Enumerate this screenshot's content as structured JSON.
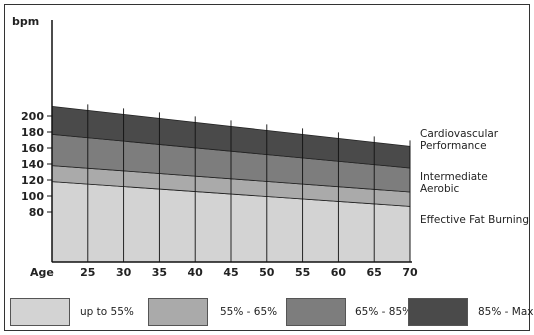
{
  "chart_data": {
    "type": "area",
    "ylabel": "bpm",
    "xlabel": "Age",
    "x": [
      20,
      70
    ],
    "xticks": [
      25,
      30,
      35,
      40,
      45,
      50,
      55,
      60,
      65,
      70
    ],
    "yticks": [
      80,
      100,
      120,
      140,
      160,
      180,
      200
    ],
    "xlim": [
      20,
      70
    ],
    "ylim": [
      70,
      220
    ],
    "grid": "vertical",
    "boundaries": {
      "max_hr": [
        212,
        162
      ],
      "pct_85": [
        177,
        135
      ],
      "pct_65": [
        138,
        105
      ],
      "pct_55": [
        118,
        87
      ]
    },
    "bands": [
      {
        "name": "up to 55%",
        "color": "#d3d3d3",
        "lower": "floor",
        "upper": "pct_55"
      },
      {
        "name": "55% - 65%",
        "color": "#aaaaaa",
        "lower": "pct_55",
        "upper": "pct_65"
      },
      {
        "name": "65% - 85%",
        "color": "#7d7d7d",
        "lower": "pct_65",
        "upper": "pct_85"
      },
      {
        "name": "85% - Max",
        "color": "#4a4a4a",
        "lower": "pct_85",
        "upper": "max_hr"
      }
    ],
    "annotations": [
      {
        "lines": [
          "Cardiovascular",
          "Performance"
        ],
        "band": "65% - 85%"
      },
      {
        "lines": [
          "Intermediate",
          "Aerobic"
        ],
        "band": "55% - 65%"
      },
      {
        "lines": [
          "Effective Fat Burning"
        ],
        "band": "up to 55%"
      }
    ],
    "legend": [
      {
        "label": "up to 55%",
        "color": "#d3d3d3"
      },
      {
        "label": "55% - 65%",
        "color": "#aaaaaa"
      },
      {
        "label": "65% - 85%",
        "color": "#7d7d7d"
      },
      {
        "label": "85% - Max",
        "color": "#4a4a4a"
      }
    ]
  }
}
